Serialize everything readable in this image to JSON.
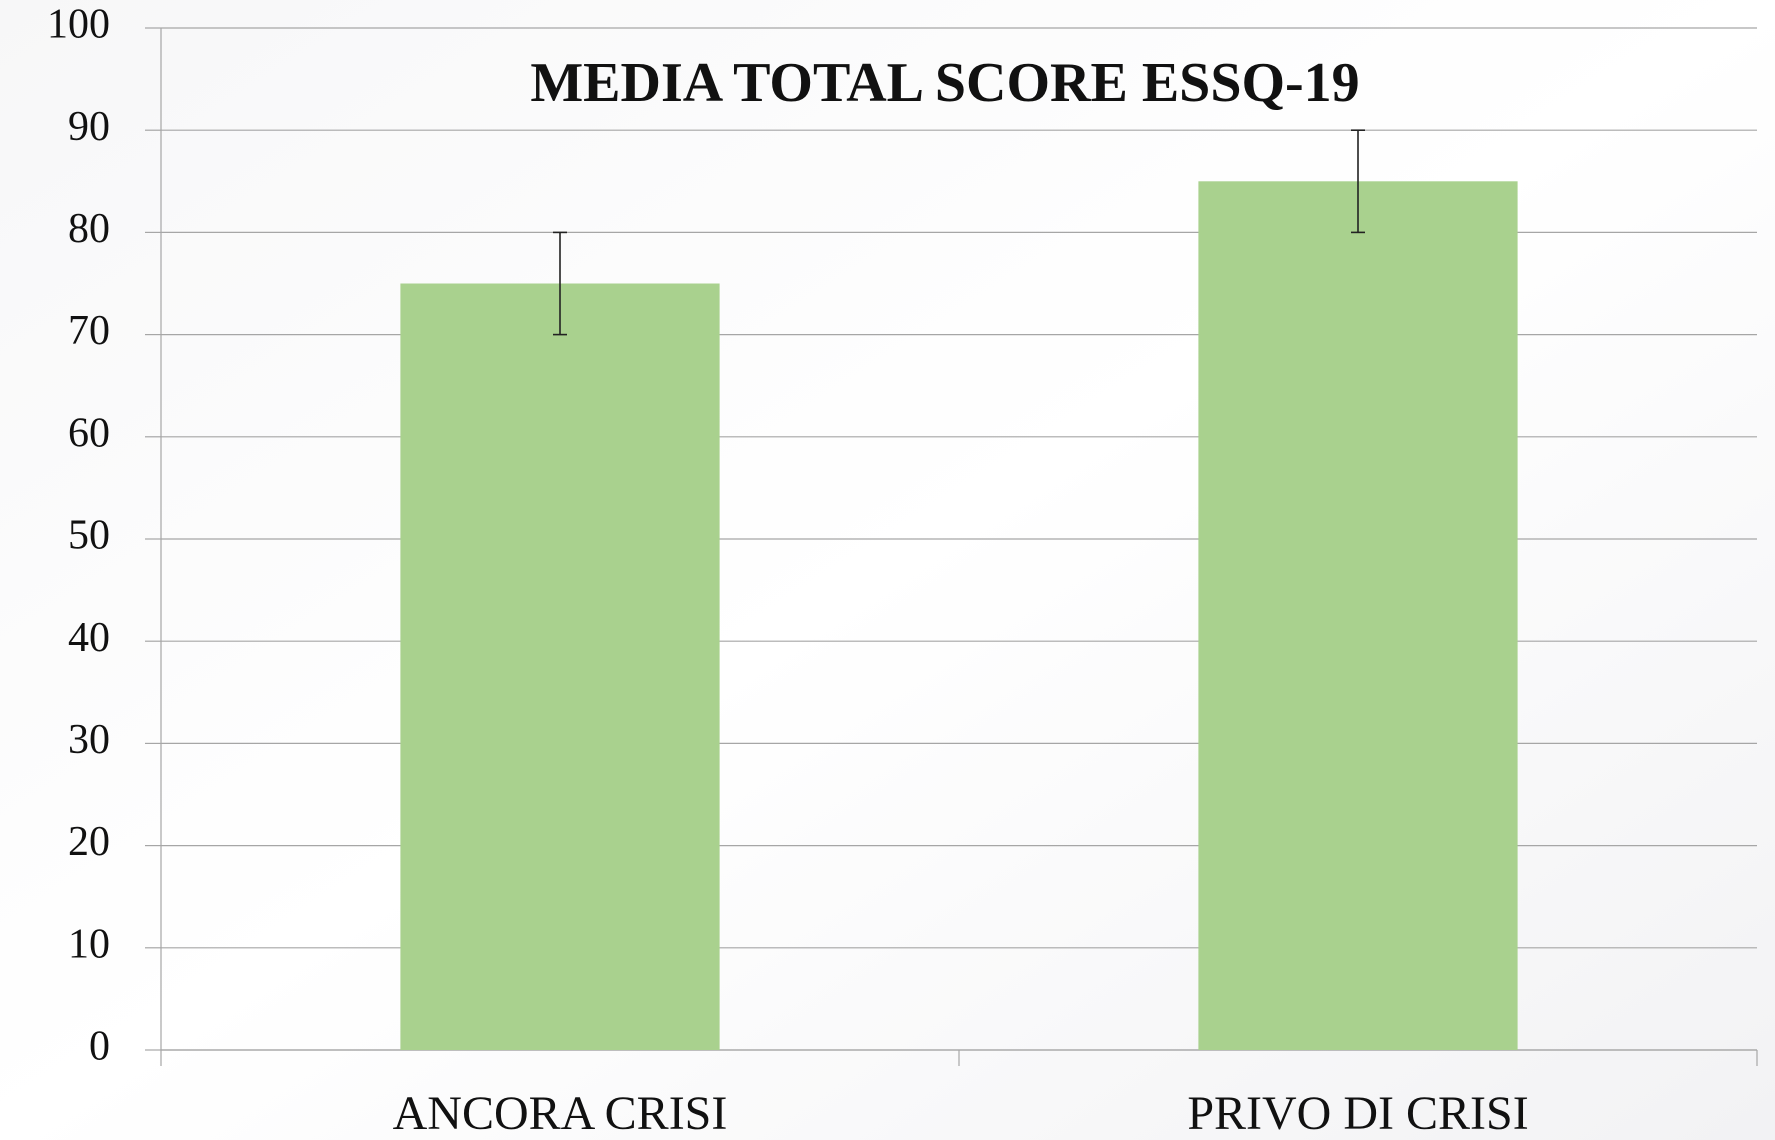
{
  "chart_data": {
    "type": "bar",
    "title": "MEDIA TOTAL SCORE ESSQ-19",
    "categories": [
      "ANCORA CRISI",
      "PRIVO DI CRISI"
    ],
    "values": [
      75,
      85
    ],
    "errors": [
      5,
      5
    ],
    "color": "#a9d18e",
    "ylim": [
      0,
      100
    ],
    "yticks": [
      0,
      10,
      20,
      30,
      40,
      50,
      60,
      70,
      80,
      90,
      100
    ],
    "grid": true
  }
}
